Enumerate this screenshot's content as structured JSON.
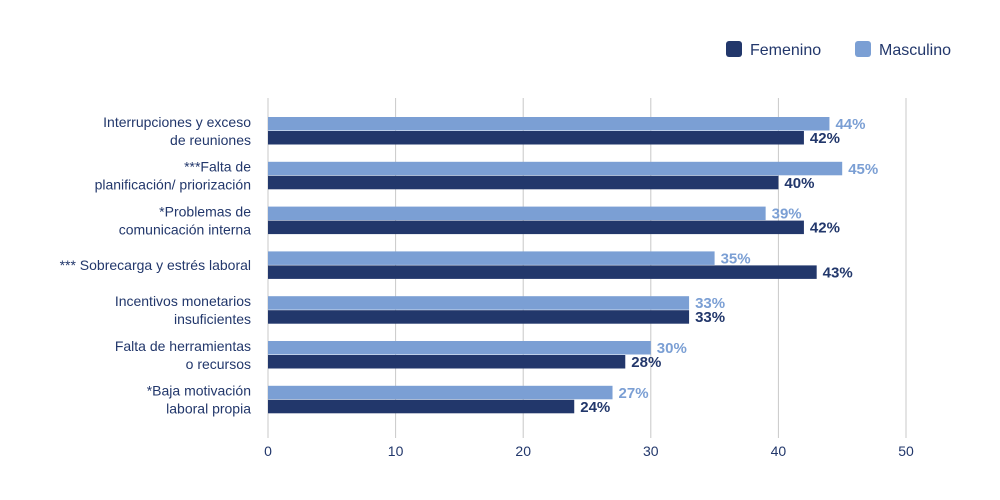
{
  "chart_data": {
    "type": "bar",
    "orientation": "horizontal",
    "categories": [
      [
        "Interrupciones y exceso",
        "de reuniones"
      ],
      [
        "***Falta de",
        "planificación/ priorización"
      ],
      [
        "*Problemas de",
        "comunicación interna"
      ],
      [
        "*** Sobrecarga y estrés laboral"
      ],
      [
        "Incentivos monetarios",
        "insuficientes"
      ],
      [
        "Falta de herramientas",
        "o recursos"
      ],
      [
        "*Baja motivación",
        "laboral propia"
      ]
    ],
    "series": [
      {
        "name": "Masculino",
        "color": "#7b9fd4",
        "values": [
          44,
          45,
          39,
          35,
          33,
          30,
          27
        ],
        "labels": [
          "44%",
          "45%",
          "39%",
          "35%",
          "33%",
          "30%",
          "27%"
        ]
      },
      {
        "name": "Femenino",
        "color": "#22376b",
        "values": [
          42,
          40,
          42,
          43,
          33,
          28,
          24
        ],
        "labels": [
          "42%",
          "40%",
          "42%",
          "43%",
          "33%",
          "28%",
          "24%"
        ]
      }
    ],
    "legend_order": [
      "Femenino",
      "Masculino"
    ],
    "legend_position": "top-right",
    "xlim": [
      0,
      50
    ],
    "xticks": [
      0,
      10,
      20,
      30,
      40,
      50
    ],
    "grid": true,
    "title": "",
    "xlabel": "",
    "ylabel": "",
    "text_color": "#22376b"
  }
}
